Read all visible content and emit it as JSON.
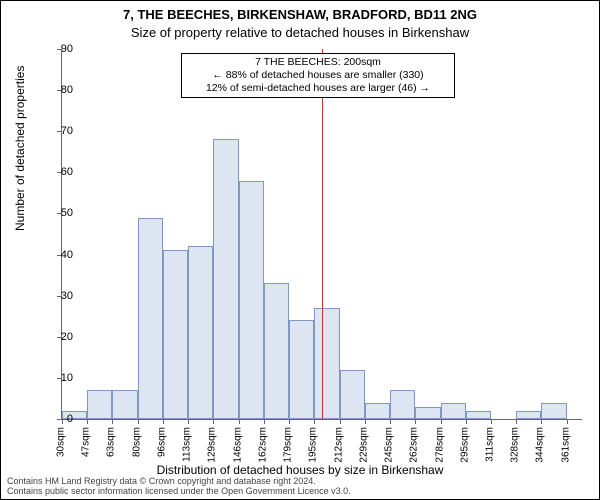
{
  "title_line1": "7, THE BEECHES, BIRKENSHAW, BRADFORD, BD11 2NG",
  "title_line2": "Size of property relative to detached houses in Birkenshaw",
  "y_axis_label": "Number of detached properties",
  "x_axis_label": "Distribution of detached houses by size in Birkenshaw",
  "footer_line1": "Contains HM Land Registry data © Crown copyright and database right 2024.",
  "footer_line2": "Contains public sector information licensed under the Open Government Licence v3.0.",
  "annotation": {
    "line1": "7 THE BEECHES: 200sqm",
    "line2": "← 88% of detached houses are smaller (330)",
    "line3": "12% of semi-detached houses are larger (46) →"
  },
  "chart": {
    "type": "histogram",
    "ylim": [
      0,
      90
    ],
    "ytick_step": 10,
    "x_min": 30,
    "x_max": 370,
    "x_bin_width": 16.5,
    "x_tick_labels": [
      "30sqm",
      "47sqm",
      "63sqm",
      "80sqm",
      "96sqm",
      "113sqm",
      "129sqm",
      "146sqm",
      "162sqm",
      "179sqm",
      "195sqm",
      "212sqm",
      "229sqm",
      "245sqm",
      "262sqm",
      "278sqm",
      "295sqm",
      "311sqm",
      "328sqm",
      "344sqm",
      "361sqm"
    ],
    "values": [
      2,
      7,
      7,
      49,
      41,
      42,
      68,
      58,
      33,
      24,
      27,
      12,
      4,
      7,
      3,
      4,
      2,
      0,
      2,
      4,
      0
    ],
    "bar_fill": "#dde5f2",
    "bar_stroke": "#7f98c1",
    "background_color": "#ffffff",
    "axis_color": "#666666",
    "reference_line": {
      "x_value": 200,
      "color": "#cc3333"
    },
    "title_fontsize": 13,
    "label_fontsize": 12,
    "tick_fontsize": 10
  }
}
